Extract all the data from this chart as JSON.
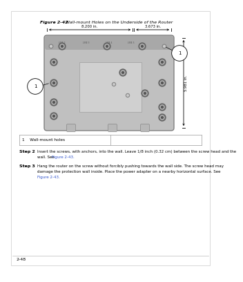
{
  "bg_color": "#ffffff",
  "fig_title": "Figure 2-42",
  "fig_caption": "Wall-mount Holes on the Underside of the Router",
  "dim_top_left": "8.200 in.",
  "dim_top_right": "3.673 in.",
  "dim_right": "5.981 in.",
  "step2_label": "Step 2",
  "step2_line1": "Insert the screws, with anchors, into the wall. Leave 1/8 inch (0.32 cm) between the screw head and the",
  "step2_line2": "wall. See ",
  "step2_ref": "Figure 2-43.",
  "step3_label": "Step 3",
  "step3_line1": "Hang the router on the screw without forcibly pushing towards the wall side. The screw head may",
  "step3_line2": "damage the protection wall inside. Place the power adapter on a nearby horizontal surface. See",
  "step3_ref": "Figure 2-43.",
  "figure_ref_color": "#3355cc",
  "footer_text": "2-48",
  "legend_num": "1",
  "legend_text": "Wall-mount holes",
  "router_fill": "#c0c0c0",
  "router_edge": "#808080",
  "router_dark": "#999999",
  "inner_fill": "#d0d0d0",
  "top_band_fill": "#a8a8a8"
}
